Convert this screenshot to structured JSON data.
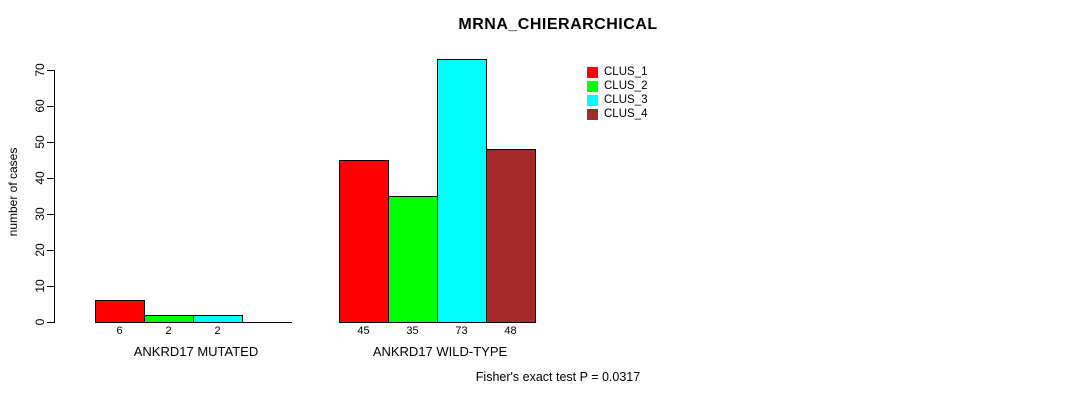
{
  "chart_data": {
    "type": "bar",
    "title": "MRNA_CHIERARCHICAL",
    "ylabel": "number of cases",
    "xlabel": "",
    "ylim": [
      0,
      70
    ],
    "yticks": [
      0,
      10,
      20,
      30,
      40,
      50,
      60,
      70
    ],
    "grid": false,
    "legend_position": "top-right-outside-plot",
    "categories": [
      "ANKRD17 MUTATED",
      "ANKRD17 WILD-TYPE"
    ],
    "series": [
      {
        "name": "CLUS_1",
        "color": "#FF0000",
        "values": [
          6,
          45
        ]
      },
      {
        "name": "CLUS_2",
        "color": "#00FF00",
        "values": [
          2,
          35
        ]
      },
      {
        "name": "CLUS_3",
        "color": "#00FFFF",
        "values": [
          2,
          73
        ]
      },
      {
        "name": "CLUS_4",
        "color": "#A52A2A",
        "values": [
          0,
          48
        ]
      }
    ],
    "bar_value_labels": [
      "6",
      "2",
      "2",
      "",
      "45",
      "35",
      "73",
      "48"
    ],
    "annotation": "Fisher's exact test P = 0.0317"
  },
  "colors": {
    "background": "#FFFFFF",
    "axis": "#000000",
    "text": "#000000"
  }
}
